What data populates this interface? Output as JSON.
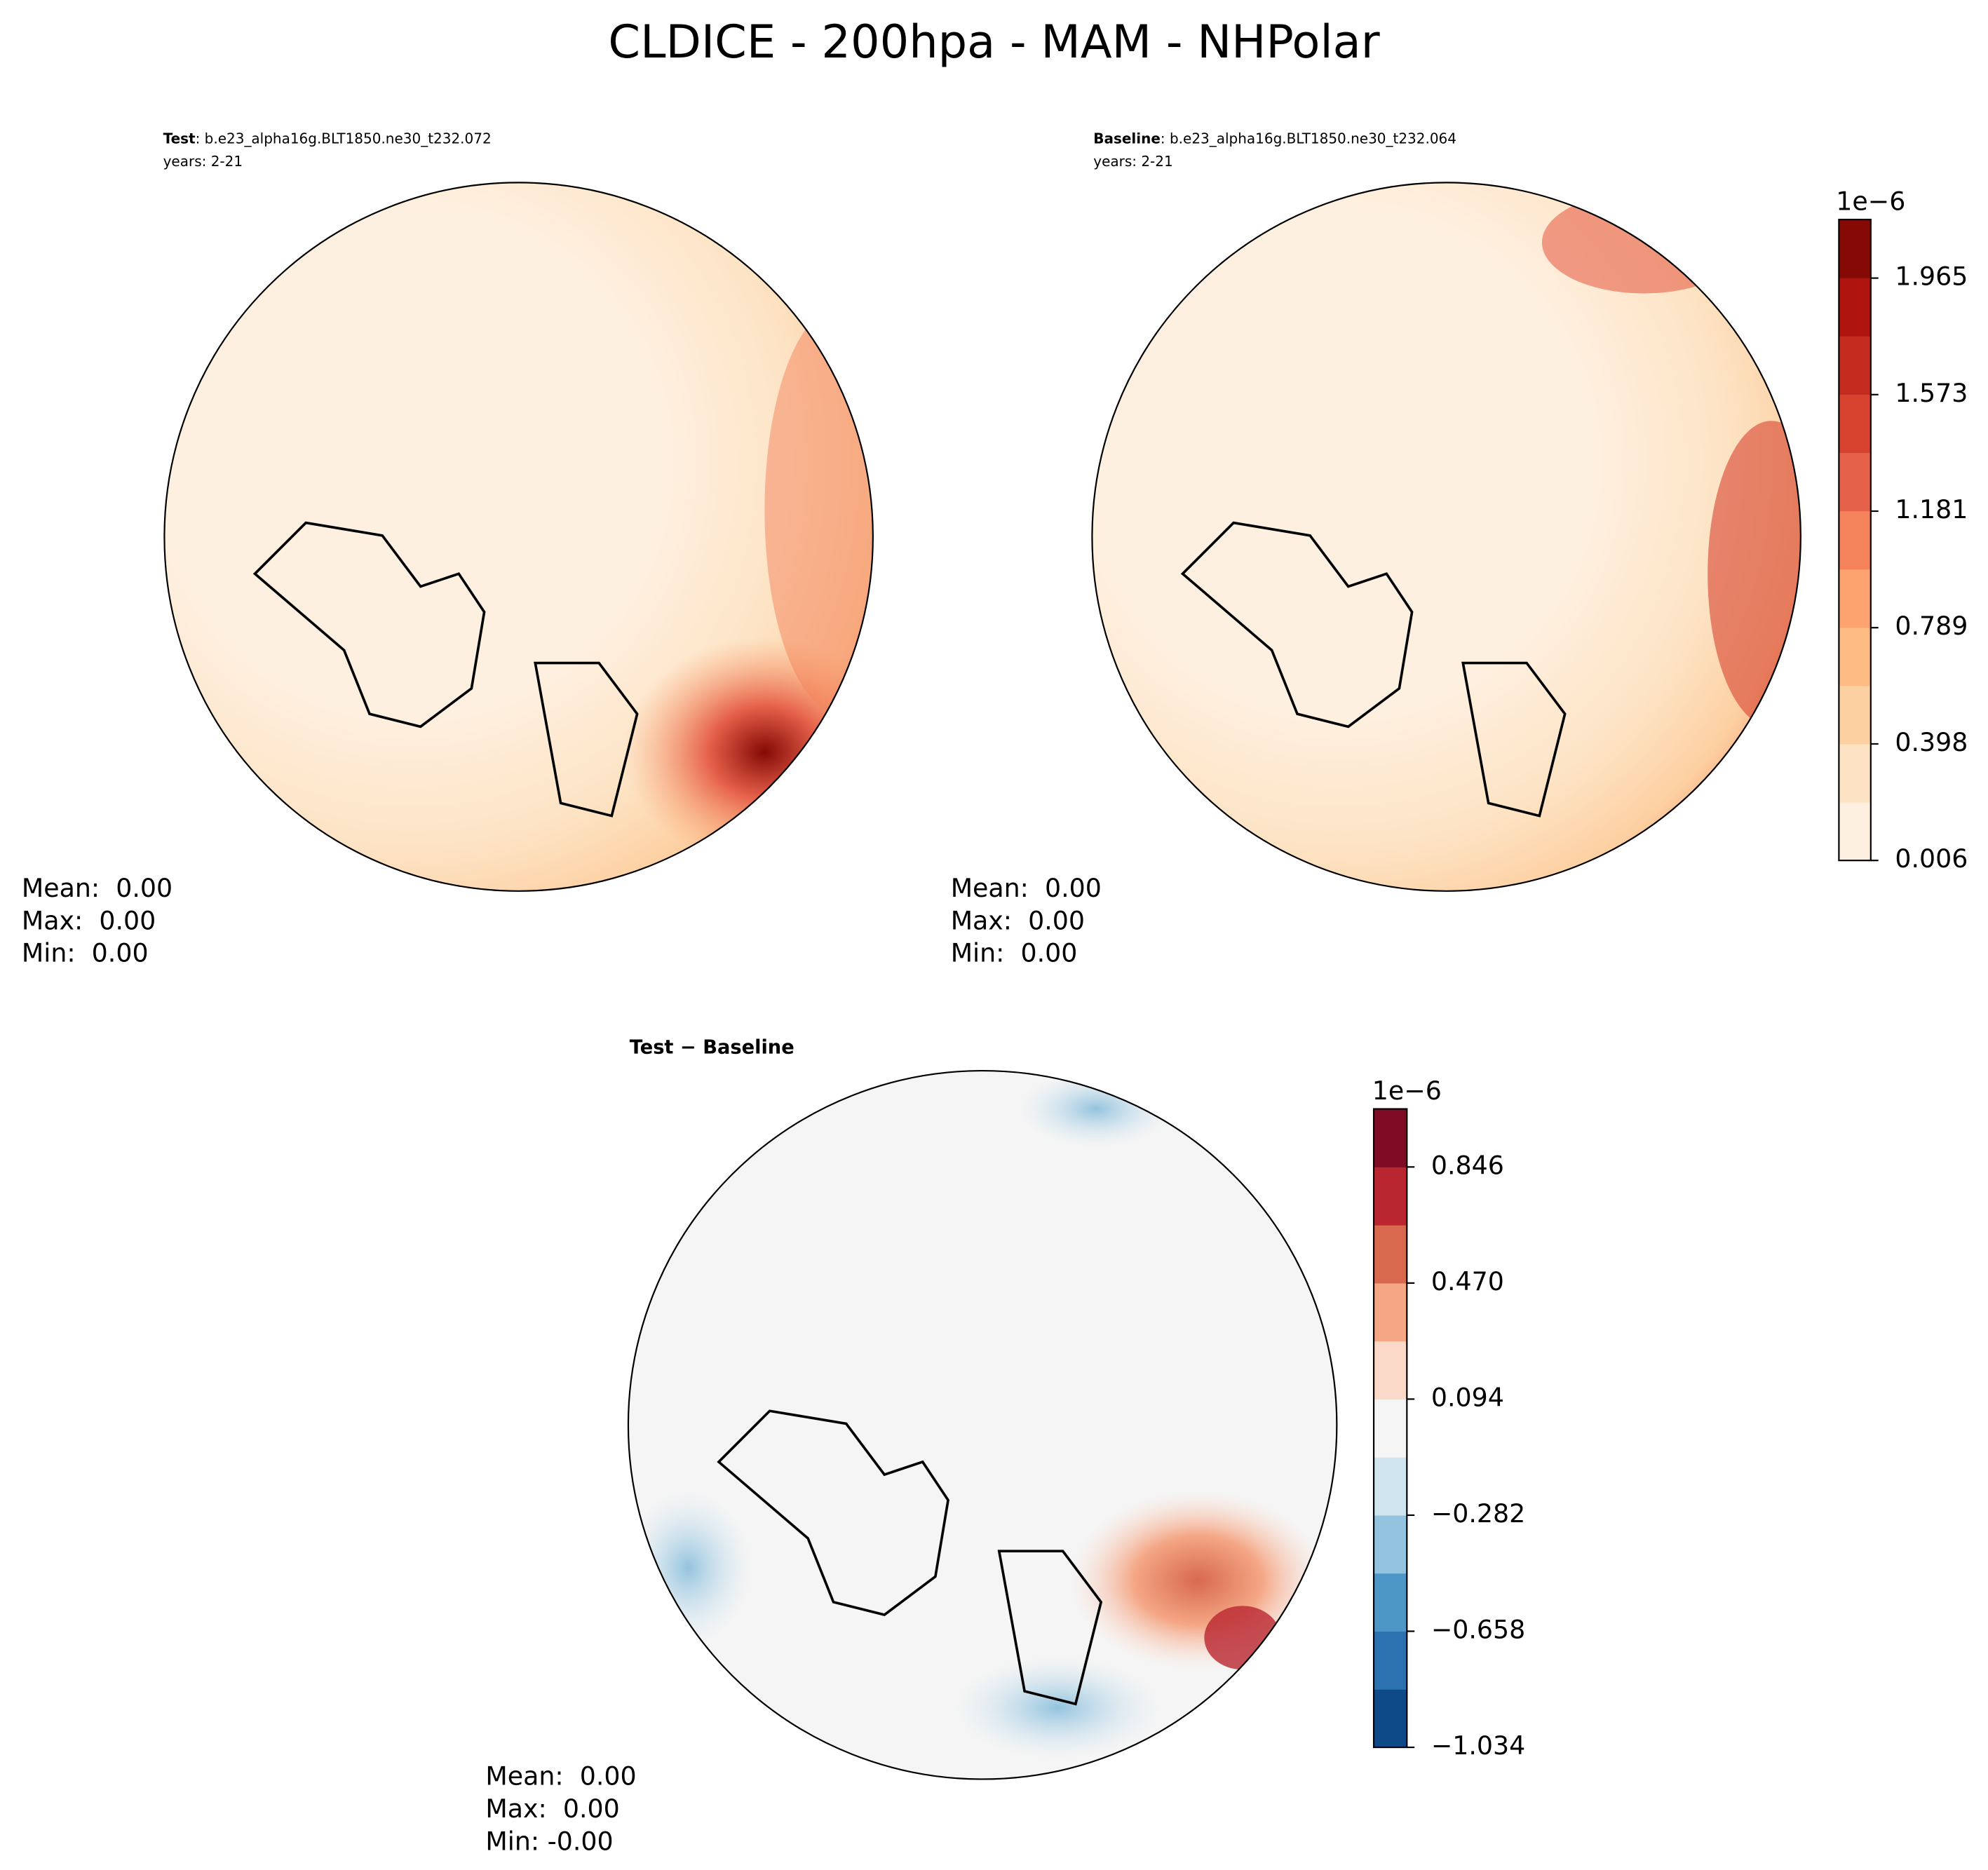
{
  "title": "CLDICE - 200hpa - MAM - NHPolar",
  "panels": [
    {
      "label_bold": "Test",
      "label_rest": ": b.e23_alpha16g.BLT1850.ne30_t232.072",
      "years": "years: 2-21",
      "stats": [
        "Mean:  0.00",
        "Max:  0.00",
        "Min:  0.00"
      ]
    },
    {
      "label_bold": "Baseline",
      "label_rest": ": b.e23_alpha16g.BLT1850.ne30_t232.064",
      "years": "years: 2-21",
      "stats": [
        "Mean:  0.00",
        "Max:  0.00",
        "Min:  0.00"
      ]
    },
    {
      "label_bold": "Test − Baseline",
      "stats": [
        "Mean:  0.00",
        "Max:  0.00",
        "Min: -0.00"
      ]
    }
  ],
  "colorbars": [
    {
      "exponent": "1e−6",
      "lim": [
        0.006,
        2.162
      ],
      "ticks": [
        0.006,
        0.398,
        0.789,
        1.181,
        1.573,
        1.965
      ],
      "colors": [
        "#fef0e0",
        "#fde3c4",
        "#fdd0a2",
        "#fdbb84",
        "#fca36f",
        "#f4825a",
        "#e6614a",
        "#d7432f",
        "#c42c1f",
        "#b0140f",
        "#850a05"
      ]
    },
    {
      "exponent": "1e−6",
      "lim": [
        -1.034,
        1.034
      ],
      "ticks": [
        {
          "value": -1.034,
          "label": "−1.034"
        },
        {
          "value": -0.658,
          "label": "−0.658"
        },
        {
          "value": -0.282,
          "label": "−0.282"
        },
        0.094,
        {
          "value": 0.47,
          "label": "0.470"
        },
        0.846
      ],
      "colors": [
        "#0d4a87",
        "#2c72b1",
        "#4d97c7",
        "#93c3de",
        "#d1e5f0",
        "#f5f5f5",
        "#fbd9c9",
        "#f4a685",
        "#d8694f",
        "#b9262f",
        "#7f0b24"
      ]
    }
  ]
}
